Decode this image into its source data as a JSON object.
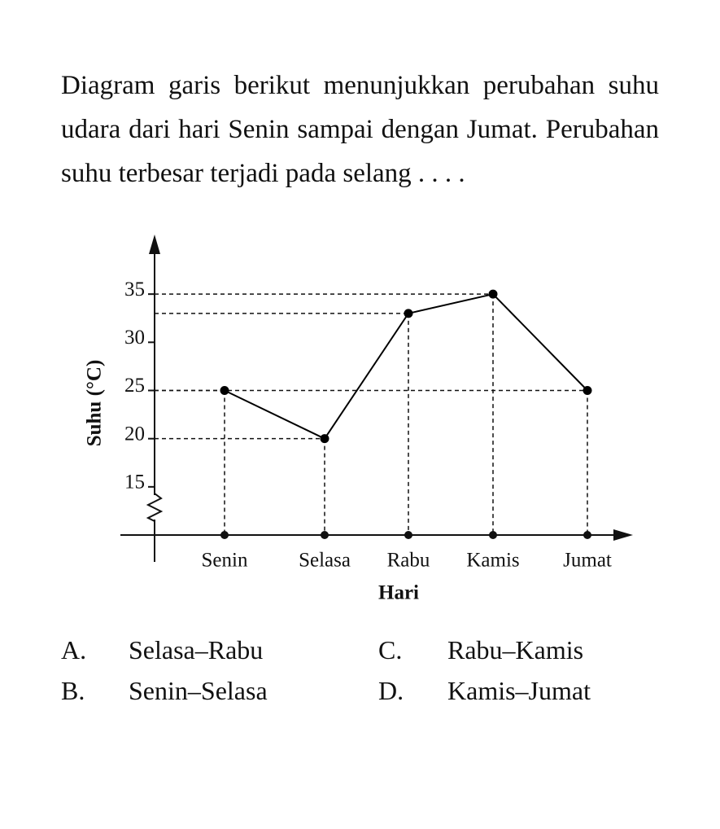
{
  "question": "Diagram garis berikut menunjukkan perubahan suhu udara dari hari Senin sampai dengan Jumat. Perubahan suhu terbesar terjadi pada selang . . . .",
  "chart_data": {
    "type": "line",
    "categories": [
      "Senin",
      "Selasa",
      "Rabu",
      "Kamis",
      "Jumat"
    ],
    "values": [
      25,
      20,
      33,
      35,
      25
    ],
    "color": "#000000",
    "ylim": [
      10,
      40
    ],
    "yticks": [
      15,
      20,
      25,
      30,
      35
    ],
    "y_label": "Suhu (°C)",
    "x_label": "Hari"
  },
  "options": [
    {
      "letter": "A.",
      "text": "Selasa–Rabu"
    },
    {
      "letter": "B.",
      "text": "Senin–Selasa"
    },
    {
      "letter": "C.",
      "text": "Rabu–Kamis"
    },
    {
      "letter": "D.",
      "text": "Kamis–Jumat"
    }
  ]
}
